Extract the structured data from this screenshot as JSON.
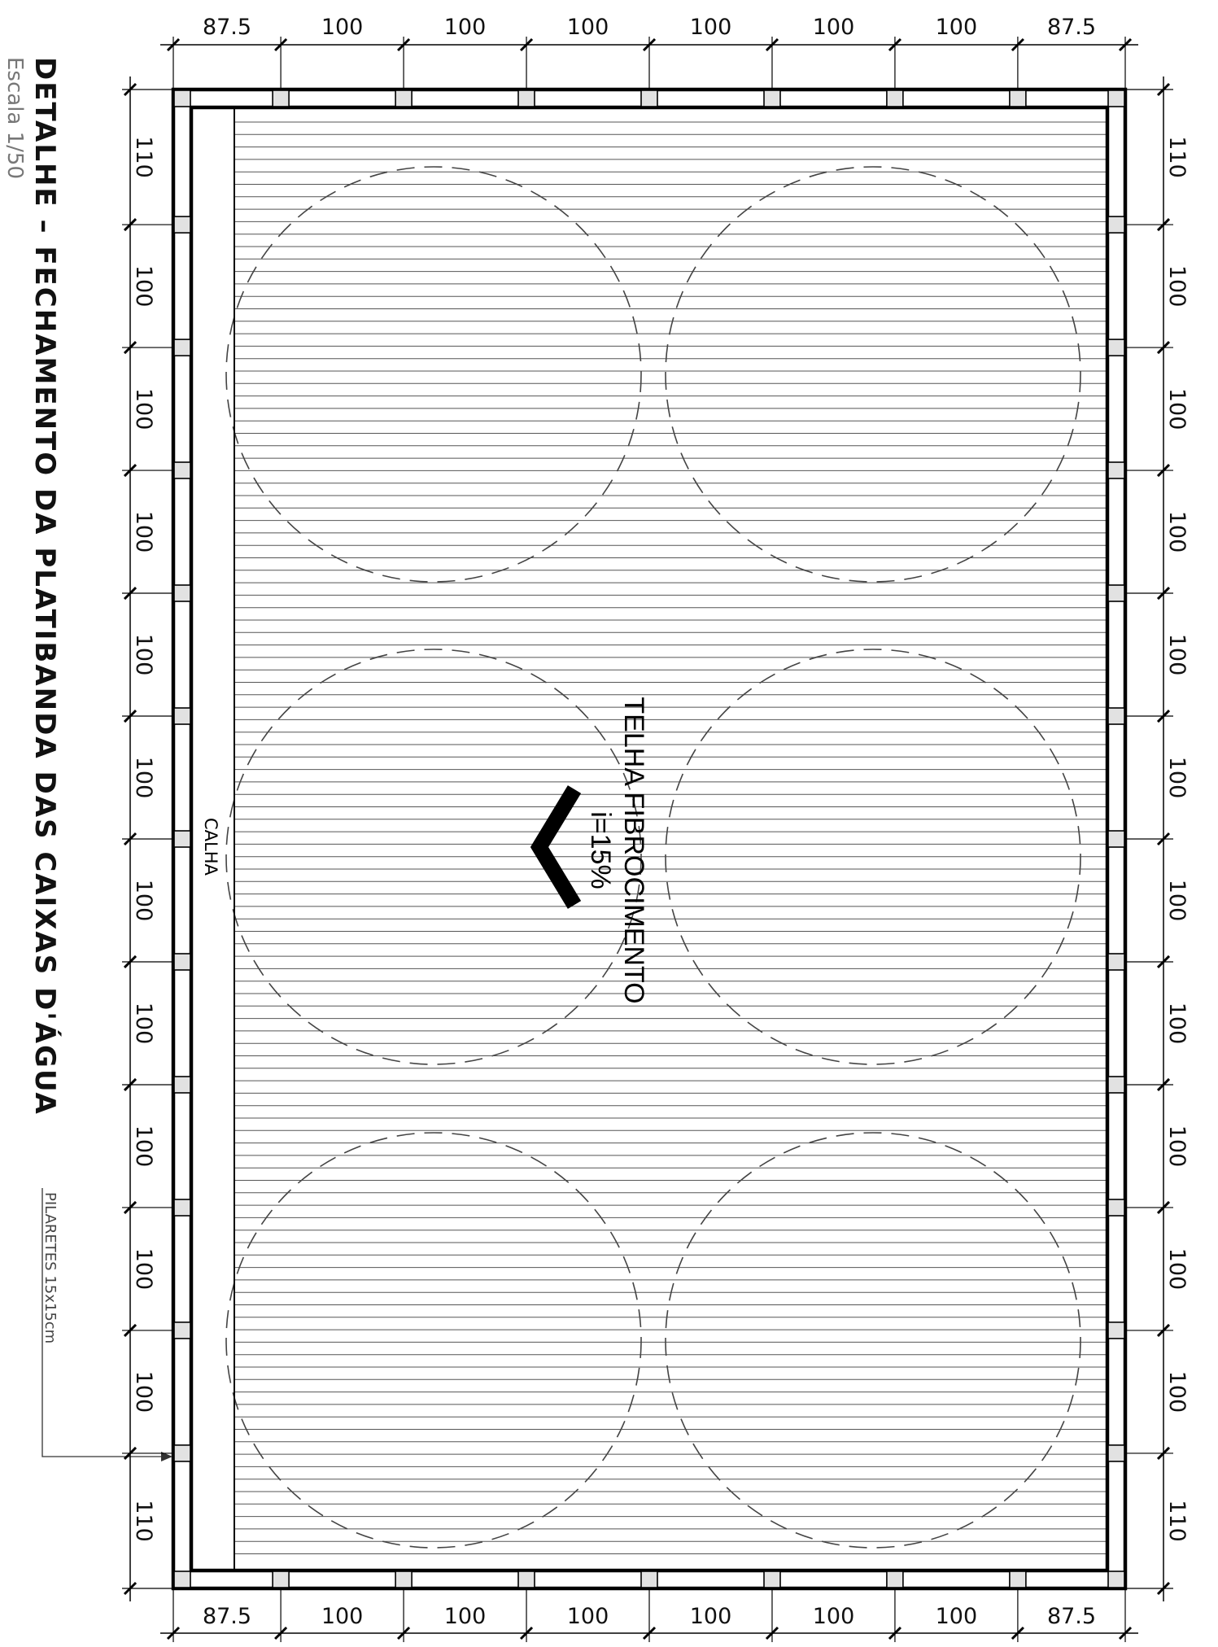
{
  "title": "DETALHE – FECHAMENTO DA PLATIBANDA DAS CAIXAS D'ÁGUA",
  "scale": "Escala 1/50",
  "note": "PILARETES 15x15cm",
  "roof": {
    "label": "TELHA FIBROCIMENTO",
    "slope": "i=15%"
  },
  "gutter": {
    "label": "CALHA"
  },
  "dims": {
    "horizontal": [
      "87.5",
      "100",
      "100",
      "100",
      "100",
      "100",
      "100",
      "87.5"
    ],
    "vertical": [
      "110",
      "100",
      "100",
      "100",
      "100",
      "100",
      "100",
      "100",
      "100",
      "100",
      "100",
      "110"
    ]
  },
  "tanks": {
    "rows": 3,
    "cols": 2
  }
}
